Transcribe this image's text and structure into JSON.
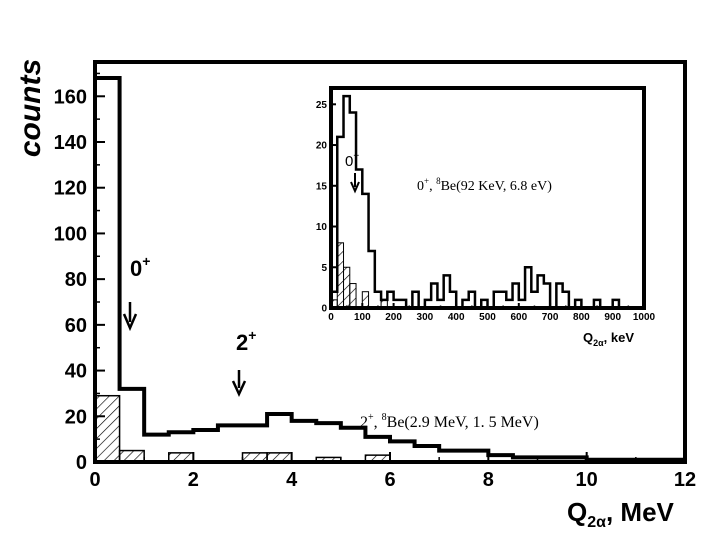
{
  "chart_data": [
    {
      "id": "main",
      "type": "histogram",
      "xlabel": "Q",
      "xlabel_sub": "2α",
      "xlabel_unit": ", MeV",
      "ylabel": "counts",
      "xlim": [
        0,
        12
      ],
      "ylim": [
        0,
        175
      ],
      "x_ticks": [
        0,
        2,
        4,
        6,
        8,
        10,
        12
      ],
      "y_ticks": [
        0,
        20,
        40,
        60,
        80,
        100,
        120,
        140,
        160
      ],
      "bin_width": 0.5,
      "series": [
        {
          "style": "open",
          "values": [
            168,
            32,
            12,
            13,
            14,
            16,
            16,
            21,
            18,
            17,
            15,
            11,
            9,
            7,
            5,
            5,
            3,
            2,
            2,
            2,
            1,
            1,
            1,
            1
          ]
        },
        {
          "style": "hatched",
          "values": [
            29,
            5,
            0,
            4,
            0,
            0,
            4,
            4,
            0,
            2,
            0,
            3,
            0,
            0,
            0,
            0,
            0,
            0,
            0,
            0,
            0,
            0,
            0,
            0
          ]
        }
      ],
      "annotations": [
        {
          "label": "0",
          "sup": "+",
          "x": 0.7,
          "arrow_to_y": 58
        },
        {
          "label": "2",
          "sup": "+",
          "x": 2.9,
          "arrow_to_y": 30
        }
      ],
      "note": {
        "sup1": "+",
        "sup2": "8",
        "head": "2",
        "text": "Be(2.9 MeV, 1. 5 MeV)"
      }
    },
    {
      "id": "inset",
      "type": "histogram",
      "xlabel": "Q",
      "xlabel_sub": "2α",
      "xlabel_unit": ", keV",
      "xlim": [
        0,
        1000
      ],
      "ylim": [
        0,
        27
      ],
      "x_ticks": [
        0,
        100,
        200,
        300,
        400,
        500,
        600,
        700,
        800,
        900,
        1000
      ],
      "y_ticks": [
        0,
        5,
        10,
        15,
        20,
        25
      ],
      "bin_width": 20,
      "series": [
        {
          "style": "open",
          "values": [
            2,
            21,
            26,
            24,
            17,
            14,
            7,
            2,
            1,
            2,
            1,
            1,
            0,
            2,
            0,
            1,
            3,
            1,
            4,
            2,
            0,
            1,
            2,
            0,
            1,
            0,
            2,
            2,
            1,
            3,
            1,
            5,
            2,
            4,
            3,
            0,
            3,
            2,
            0,
            1,
            0,
            0,
            1,
            0,
            0,
            1,
            0,
            0,
            0,
            0
          ]
        },
        {
          "style": "hatched",
          "values": [
            1,
            8,
            5,
            3,
            0,
            2,
            0,
            0,
            1,
            0,
            0,
            0,
            0,
            0,
            0,
            0,
            0,
            0,
            0,
            0,
            0,
            0,
            0,
            0,
            0,
            0,
            0,
            0,
            0,
            0,
            0,
            0,
            0,
            0,
            0,
            0,
            0,
            0,
            0,
            0,
            0,
            0,
            0,
            0,
            0,
            0,
            0,
            0,
            0,
            0
          ]
        }
      ],
      "annotations": [
        {
          "label": "0",
          "sup": "+",
          "x": 75,
          "arrow_to_y": 14
        }
      ],
      "note": {
        "sup1": "+",
        "sup2": "8",
        "head": "0",
        "text": "Be(92 KeV, 6.8 eV)"
      }
    }
  ]
}
